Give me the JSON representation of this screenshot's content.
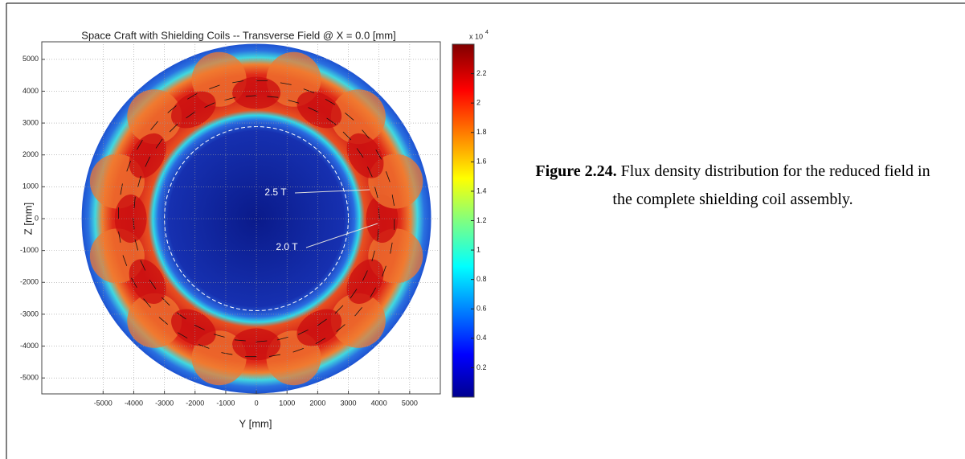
{
  "chart_data": {
    "type": "contour",
    "title": "Space Craft with Shielding Coils -- Transverse Field @ X = 0.0 [mm]",
    "xlabel": "Y [mm]",
    "ylabel": "Z [mm]",
    "xlim": [
      -7000,
      6000
    ],
    "ylim": [
      -5500,
      5550
    ],
    "xticks": [
      -5000,
      -4000,
      -3000,
      -2000,
      -1000,
      0,
      1000,
      2000,
      3000,
      4000,
      5000
    ],
    "yticks": [
      5000,
      4000,
      3000,
      2000,
      1000,
      0,
      -1000,
      -2000,
      -3000,
      -4000,
      -5000
    ],
    "grid": true,
    "colorbar": {
      "lim": [
        0,
        2.4
      ],
      "ticks": [
        0.2,
        0.4,
        0.6,
        0.8,
        1,
        1.2,
        1.4,
        1.6,
        1.8,
        2,
        2.2
      ],
      "multiplier": "x 10",
      "exponent": "4"
    },
    "annotations": [
      "2.5 T",
      "2.0 T"
    ]
  },
  "caption": {
    "label": "Figure 2.24.",
    "text": "Flux density distribution for the reduced field in the complete shielding coil assembly."
  }
}
